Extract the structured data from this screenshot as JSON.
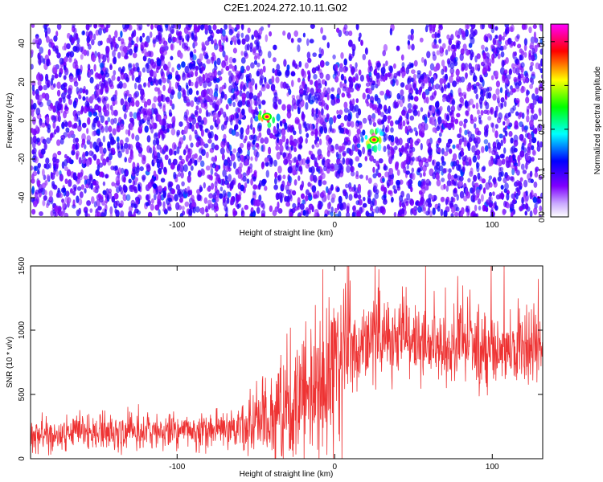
{
  "title": "C2E1.2024.272.10.11.G02",
  "chart_data": [
    {
      "type": "heatmap",
      "xlabel": "Height of straight line (km)",
      "ylabel": "Frequency (Hz)",
      "xlim": [
        -193,
        132
      ],
      "ylim": [
        -50,
        50
      ],
      "xticks": [
        -100,
        0,
        100
      ],
      "yticks": [
        -40,
        -20,
        0,
        20,
        40
      ],
      "colorbar": {
        "label": "Normalized spectral amplitude",
        "range": [
          0,
          0.44
        ],
        "ticks": [
          0.0,
          0.1,
          0.2,
          0.3,
          0.4
        ],
        "tick_labels": [
          "0.0",
          "0.1",
          "0.2",
          "0.3",
          "0.4"
        ],
        "colors": [
          "#ffffff",
          "#7f00ff",
          "#0000ff",
          "#00ffff",
          "#00ff00",
          "#ffff00",
          "#ff0000",
          "#ff00ff"
        ]
      },
      "features": [
        {
          "x": -43,
          "y": 2,
          "value": 0.4
        },
        {
          "x": 25,
          "y": -10,
          "value": 0.4
        }
      ],
      "grid": false
    },
    {
      "type": "line",
      "xlabel": "Height of straight line (km)",
      "ylabel": "SNR (10 * v/v)",
      "xlim": [
        -193,
        132
      ],
      "ylim": [
        0,
        1500
      ],
      "xticks": [
        -100,
        0,
        100
      ],
      "yticks": [
        0,
        500,
        1000,
        1500
      ],
      "color": "#ee3333",
      "series": [
        {
          "x": [
            -193,
            -180,
            -160,
            -140,
            -120,
            -100,
            -80,
            -60,
            -50,
            -40,
            -35,
            -30,
            -25,
            -20,
            -15,
            -10,
            -5,
            0,
            5,
            10,
            15,
            20,
            30,
            40,
            50,
            60,
            70,
            80,
            90,
            100,
            110,
            120,
            132
          ],
          "values": [
            190,
            190,
            200,
            205,
            210,
            215,
            220,
            235,
            270,
            330,
            380,
            430,
            480,
            520,
            560,
            600,
            650,
            700,
            760,
            810,
            850,
            880,
            920,
            950,
            930,
            910,
            890,
            875,
            865,
            860,
            855,
            850,
            850
          ]
        }
      ],
      "grid": false
    }
  ]
}
